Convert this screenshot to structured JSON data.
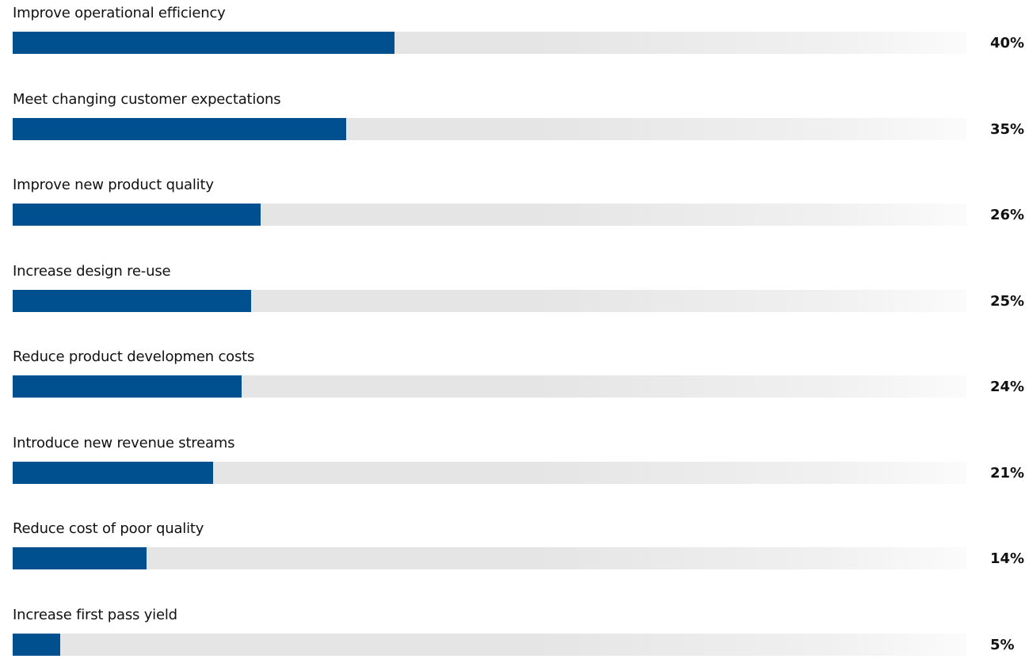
{
  "chart_data": {
    "type": "bar",
    "orientation": "horizontal",
    "categories": [
      "Improve operational efficiency",
      "Meet changing customer expectations",
      "Improve new product quality",
      "Increase design re-use",
      "Reduce product developmen costs",
      "Introduce new revenue streams",
      "Reduce cost of poor quality",
      "Increase first pass yield"
    ],
    "values": [
      40,
      35,
      26,
      25,
      24,
      21,
      14,
      5
    ],
    "value_labels": [
      "40%",
      "35%",
      "26%",
      "25%",
      "24%",
      "21%",
      "14%",
      "5%"
    ],
    "xlim": [
      0,
      100
    ],
    "grid": false,
    "legend": "none",
    "bar_color": "#00508f",
    "track_color": "#e5e5e5"
  }
}
